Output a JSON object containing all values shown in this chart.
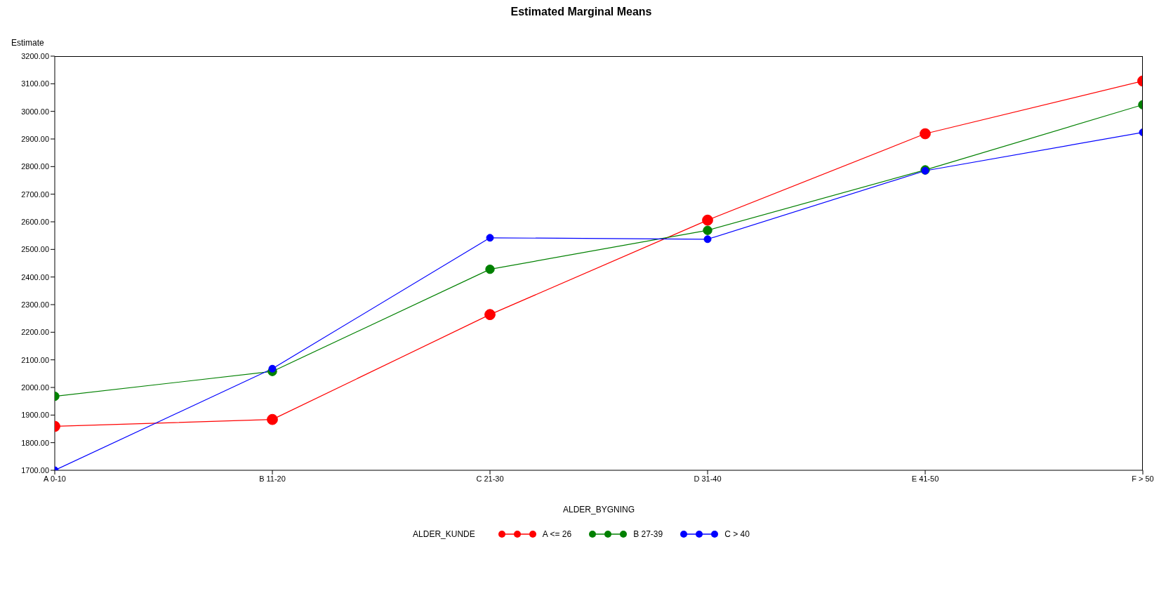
{
  "chart_data": {
    "type": "line",
    "title": "Estimated Marginal Means",
    "xlabel": "ALDER_BYGNING",
    "ylabel": "Estimate",
    "legend_title": "ALDER_KUNDE",
    "legend": "bottom",
    "marker": "circle",
    "grid": false,
    "categories": [
      "A 0-10",
      "B 11-20",
      "C 21-30",
      "D 31-40",
      "E 41-50",
      "F > 50"
    ],
    "ylim": [
      1700,
      3200
    ],
    "yticks": [
      {
        "value": 1700,
        "label": "1700.00"
      },
      {
        "value": 1800,
        "label": "1800.00"
      },
      {
        "value": 1900,
        "label": "1900.00"
      },
      {
        "value": 2000,
        "label": "2000.00"
      },
      {
        "value": 2100,
        "label": "2100.00"
      },
      {
        "value": 2200,
        "label": "2200.00"
      },
      {
        "value": 2300,
        "label": "2300.00"
      },
      {
        "value": 2400,
        "label": "2400.00"
      },
      {
        "value": 2500,
        "label": "2500.00"
      },
      {
        "value": 2600,
        "label": "2600.00"
      },
      {
        "value": 2700,
        "label": "2700.00"
      },
      {
        "value": 2800,
        "label": "2800.00"
      },
      {
        "value": 2900,
        "label": "2900.00"
      },
      {
        "value": 3000,
        "label": "3000.00"
      },
      {
        "value": 3100,
        "label": "3100.00"
      },
      {
        "value": 3200,
        "label": "3200.00"
      }
    ],
    "series": [
      {
        "name": "A <= 26",
        "color": "#ff0000",
        "values": [
          1859,
          1884,
          2264,
          2606,
          2919,
          3110
        ]
      },
      {
        "name": "B 27-39",
        "color": "#008000",
        "values": [
          1968,
          2058,
          2428,
          2569,
          2788,
          3024
        ]
      },
      {
        "name": "C > 40",
        "color": "#0000ff",
        "values": [
          1700,
          2068,
          2542,
          2537,
          2785,
          2924
        ]
      }
    ]
  }
}
